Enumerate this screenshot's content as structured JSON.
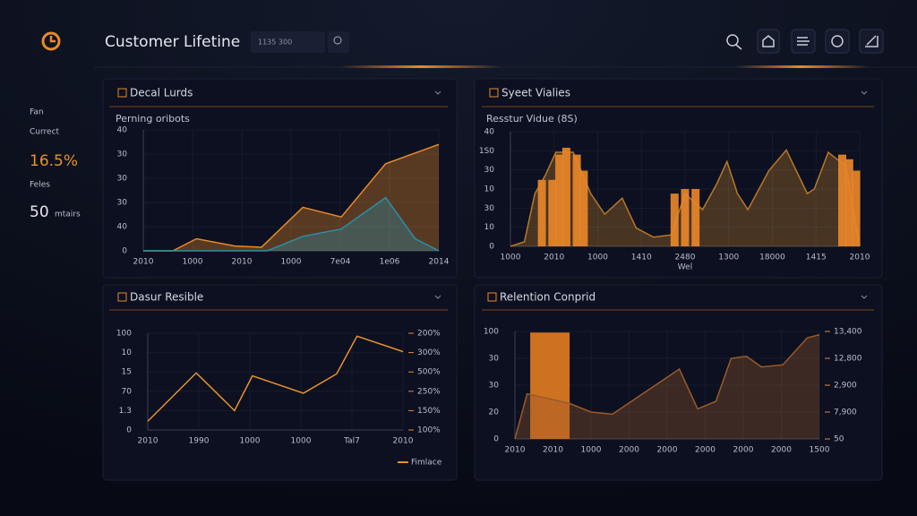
{
  "header": {
    "title": "Customer Lifetine",
    "search": "1135 300"
  },
  "sidebar": {
    "items": [
      {
        "label": "Fan"
      },
      {
        "label": "Currect"
      },
      {
        "label": "16.5%",
        "accent": true
      },
      {
        "label": "Feles"
      }
    ],
    "stat": {
      "value": "50",
      "unit": "mtairs"
    }
  },
  "panels": [
    {
      "title": "Decal Lurds",
      "subtitle": "Perning oribots",
      "xlim": [
        0,
        100
      ],
      "ylim": [
        0,
        50
      ],
      "ylabels": [
        "40",
        "30",
        "30",
        "30",
        "40",
        "0"
      ],
      "xlabels": [
        "2010",
        "1000",
        "2010",
        "1000",
        "7e04",
        "1e06",
        "2014"
      ],
      "series": [
        {
          "type": "area",
          "color": "#e8892a",
          "x": [
            0,
            10,
            18,
            31,
            40,
            54,
            67,
            82,
            100
          ],
          "values": [
            0,
            0,
            5,
            2,
            1.5,
            18,
            14,
            36,
            44
          ]
        },
        {
          "type": "area",
          "color": "#2a8fa8",
          "x": [
            0,
            42,
            54,
            67,
            82,
            92,
            100
          ],
          "values": [
            0,
            0,
            6,
            9,
            22,
            5,
            0
          ]
        }
      ]
    },
    {
      "title": "Syeet Vialies",
      "subtitle": "Resstur Vidue (8S)",
      "xlim": [
        0,
        100
      ],
      "ylim": [
        0,
        50
      ],
      "ylabels": [
        "40",
        "1S0",
        "30",
        "10",
        "30",
        "10",
        "0"
      ],
      "xlabels": [
        "1000",
        "2010",
        "1000",
        "1410",
        "2480",
        "1300",
        "18000",
        "1415",
        "2010"
      ],
      "xaxis_label": "Wel",
      "series": [
        {
          "type": "area",
          "color": "#b8782a",
          "x": [
            0,
            4,
            7,
            10,
            13,
            18,
            23,
            27,
            32,
            36,
            41,
            46,
            50,
            55,
            59,
            62,
            65,
            68,
            74,
            79,
            85,
            87,
            91,
            96,
            100
          ],
          "values": [
            0,
            2,
            23,
            31,
            41,
            41,
            23,
            14,
            21,
            8,
            4,
            5,
            23,
            16,
            27,
            37,
            23,
            16,
            33,
            42,
            23,
            25,
            41,
            35,
            0
          ]
        },
        {
          "type": "bar",
          "color": "#e8862a",
          "x": [
            9,
            12,
            14,
            16,
            19,
            21,
            47,
            50,
            53,
            95,
            97,
            99
          ],
          "values": [
            29,
            29,
            40,
            43,
            40,
            33,
            23,
            25,
            25,
            40,
            38,
            33
          ]
        }
      ]
    },
    {
      "title": "Dasur Resible",
      "xlim": [
        0,
        100
      ],
      "ylim": [
        0,
        100
      ],
      "ylabels": [
        "100",
        "10",
        "15",
        "70",
        "1.3",
        "0"
      ],
      "y2labels": [
        "200%",
        "300%",
        "500%",
        "250%",
        "150%",
        "100%"
      ],
      "xlabels": [
        "2010",
        "1990",
        "1000",
        "1000",
        "Tal7",
        "2010"
      ],
      "series": [
        {
          "type": "line",
          "name": "Fimlace",
          "color": "#e8922a",
          "x": [
            0,
            19,
            34,
            41,
            61,
            74,
            82,
            100
          ],
          "values": [
            9,
            59,
            20,
            56,
            38,
            58,
            97,
            81
          ]
        }
      ]
    },
    {
      "title": "Relention Conprid",
      "xlim": [
        0,
        100
      ],
      "ylim": [
        0,
        100
      ],
      "ylabels": [
        "100",
        "30",
        "30",
        "20",
        "0"
      ],
      "y2labels": [
        "13,400",
        "12,800",
        "2,900",
        "7,900",
        "50"
      ],
      "xlabels": [
        "2010",
        "2010",
        "1000",
        "2000",
        "2000",
        "2000",
        "2000",
        "2000",
        "1500"
      ],
      "series": [
        {
          "type": "bar",
          "color": "#e07a22",
          "x": [
            11.5
          ],
          "values": [
            99
          ]
        },
        {
          "type": "area",
          "color": "#9a5a2a",
          "x": [
            0,
            4,
            18,
            25,
            32,
            54,
            60,
            66,
            71,
            76,
            81,
            88,
            96,
            100
          ],
          "values": [
            0,
            42,
            33,
            25,
            23,
            65,
            28,
            35,
            75,
            77,
            67,
            69,
            94,
            97
          ]
        }
      ]
    }
  ]
}
